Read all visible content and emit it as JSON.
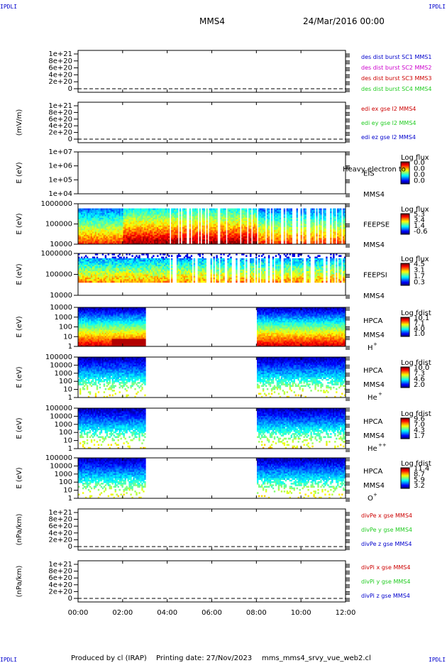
{
  "header": {
    "corner_left_top": "IPDLI",
    "corner_right_top": "IPDLI",
    "corner_left_bottom": "IPDLI",
    "corner_right_bottom": "IPDLI",
    "spacecraft": "MMS4",
    "date": "24/Mar/2016 00:00"
  },
  "footer": {
    "produced_by": "Produced by cl (IRAP)",
    "printing_date": "Printing date: 27/Nov/2023",
    "script": "mms_mms4_srvy_vue_web2.cl"
  },
  "colors": {
    "red": "#cc0000",
    "green": "#22cc22",
    "blue": "#0000cc",
    "magenta": "#cc00cc"
  },
  "chart_data": [
    {
      "id": "p1",
      "type": "line",
      "ylabel": "",
      "yticks": [
        "1e+21",
        "8e+20",
        "6e+20",
        "4e+20",
        "2e+20",
        "0"
      ],
      "xlim": [
        "00:00",
        "12:00"
      ],
      "zero_line": "dashed",
      "legend": [
        {
          "label": "des dist burst SC1 MMS1",
          "color": "#0000cc"
        },
        {
          "label": "des dist burst SC2 MMS2",
          "color": "#cc00cc"
        },
        {
          "label": "des dist burst SC3 MMS3",
          "color": "#cc0000"
        },
        {
          "label": "des dist burst SC4 MMS4",
          "color": "#22cc22"
        }
      ]
    },
    {
      "id": "p2",
      "type": "line",
      "ylabel": "(mV/m)",
      "yticks": [
        "1e+21",
        "8e+20",
        "6e+20",
        "4e+20",
        "2e+20",
        "0"
      ],
      "xlim": [
        "00:00",
        "12:00"
      ],
      "zero_line": "dashed",
      "legend": [
        {
          "label": "edi ex gse l2 MMS4",
          "color": "#cc0000"
        },
        {
          "label": "edi ey gse l2 MMS4",
          "color": "#22cc22"
        },
        {
          "label": "edi ez gse l2 MMS4",
          "color": "#0000cc"
        }
      ]
    },
    {
      "id": "p3",
      "type": "heatmap",
      "ylabel": "E (eV)",
      "y_scale": "log",
      "yticks": [
        "1e+07",
        "1e+06",
        "1e+05",
        "1e+04"
      ],
      "instrument": "EIS",
      "spacecraft": "MMS4",
      "overlay": "Heavy electron to",
      "colorbar": {
        "title": "Log flux",
        "ticks": [
          "0.0",
          "0.0",
          "0.0",
          "0.0"
        ]
      },
      "data": "none"
    },
    {
      "id": "p4",
      "type": "heatmap",
      "ylabel": "E (eV)",
      "y_scale": "log",
      "yticks": [
        "1000000",
        "100000",
        "10000"
      ],
      "instrument": "FEEPSE",
      "spacecraft": "MMS4",
      "colorbar": {
        "title": "Log flux",
        "ticks": [
          "5.3",
          "3.4",
          "1.4",
          "-0.6"
        ]
      }
    },
    {
      "id": "p5",
      "type": "heatmap",
      "ylabel": "E (eV)",
      "y_scale": "log",
      "yticks": [
        "1000000",
        "100000",
        "10000"
      ],
      "instrument": "FEEPSI",
      "spacecraft": "MMS4",
      "colorbar": {
        "title": "Log flux",
        "ticks": [
          "4.5",
          "3.1",
          "1.7",
          "0.3"
        ]
      }
    },
    {
      "id": "p6",
      "type": "heatmap",
      "ylabel": "E (eV)",
      "y_scale": "log",
      "yticks": [
        "10000",
        "1000",
        "100",
        "10",
        "1"
      ],
      "instrument": "HPCA",
      "spacecraft": "MMS4",
      "species": "H",
      "charge": "+",
      "colorbar": {
        "title": "Log fdist",
        "ticks": [
          "10.1",
          "7.1",
          "4.0",
          "1.0"
        ]
      },
      "coverage": [
        [
          "00:00",
          "03:00"
        ],
        [
          "08:00",
          "12:00"
        ]
      ]
    },
    {
      "id": "p7",
      "type": "heatmap",
      "ylabel": "E (eV)",
      "y_scale": "log",
      "yticks": [
        "100000",
        "10000",
        "1000",
        "100",
        "10",
        "1"
      ],
      "instrument": "HPCA",
      "spacecraft": "MMS4",
      "species": "He",
      "charge": "+",
      "colorbar": {
        "title": "Log fdist",
        "ticks": [
          "10.0",
          "7.3",
          "4.6",
          "2.0"
        ]
      },
      "coverage": [
        [
          "00:00",
          "03:00"
        ],
        [
          "08:00",
          "12:00"
        ]
      ]
    },
    {
      "id": "p8",
      "type": "heatmap",
      "ylabel": "E (eV)",
      "y_scale": "log",
      "yticks": [
        "100000",
        "10000",
        "1000",
        "100",
        "10",
        "1"
      ],
      "instrument": "HPCA",
      "spacecraft": "MMS4",
      "species": "He",
      "charge": "++",
      "colorbar": {
        "title": "Log fdist",
        "ticks": [
          "9.6",
          "7.0",
          "4.3",
          "1.7"
        ]
      },
      "coverage": [
        [
          "00:00",
          "03:00"
        ],
        [
          "08:00",
          "12:00"
        ]
      ]
    },
    {
      "id": "p9",
      "type": "heatmap",
      "ylabel": "E (eV)",
      "y_scale": "log",
      "yticks": [
        "100000",
        "10000",
        "1000",
        "100",
        "10",
        "1"
      ],
      "instrument": "HPCA",
      "spacecraft": "MMS4",
      "species": "O",
      "charge": "+",
      "colorbar": {
        "title": "Log fdist",
        "ticks": [
          "11.4",
          "8.7",
          "5.9",
          "3.2"
        ]
      },
      "coverage": [
        [
          "00:00",
          "03:00"
        ],
        [
          "08:00",
          "12:00"
        ]
      ]
    },
    {
      "id": "p10",
      "type": "line",
      "ylabel": "(nPa/km)",
      "yticks": [
        "1e+21",
        "8e+20",
        "6e+20",
        "4e+20",
        "2e+20",
        "0"
      ],
      "xlim": [
        "00:00",
        "12:00"
      ],
      "zero_line": "dashed",
      "legend": [
        {
          "label": "divPe x gse MMS4",
          "color": "#cc0000"
        },
        {
          "label": "divPe y gse MMS4",
          "color": "#22cc22"
        },
        {
          "label": "divPe z gse MMS4",
          "color": "#0000cc"
        }
      ]
    },
    {
      "id": "p11",
      "type": "line",
      "ylabel": "(nPa/km)",
      "yticks": [
        "1e+21",
        "8e+20",
        "6e+20",
        "4e+20",
        "2e+20",
        "0"
      ],
      "xlim": [
        "00:00",
        "12:00"
      ],
      "zero_line": "dashed",
      "legend": [
        {
          "label": "divPi x gse MMS4",
          "color": "#cc0000"
        },
        {
          "label": "divPi y gse MMS4",
          "color": "#22cc22"
        },
        {
          "label": "divPi z gse MMS4",
          "color": "#0000cc"
        }
      ]
    }
  ],
  "xaxis": {
    "ticks": [
      "00:00",
      "02:00",
      "04:00",
      "06:00",
      "08:00",
      "10:00",
      "12:00"
    ]
  }
}
